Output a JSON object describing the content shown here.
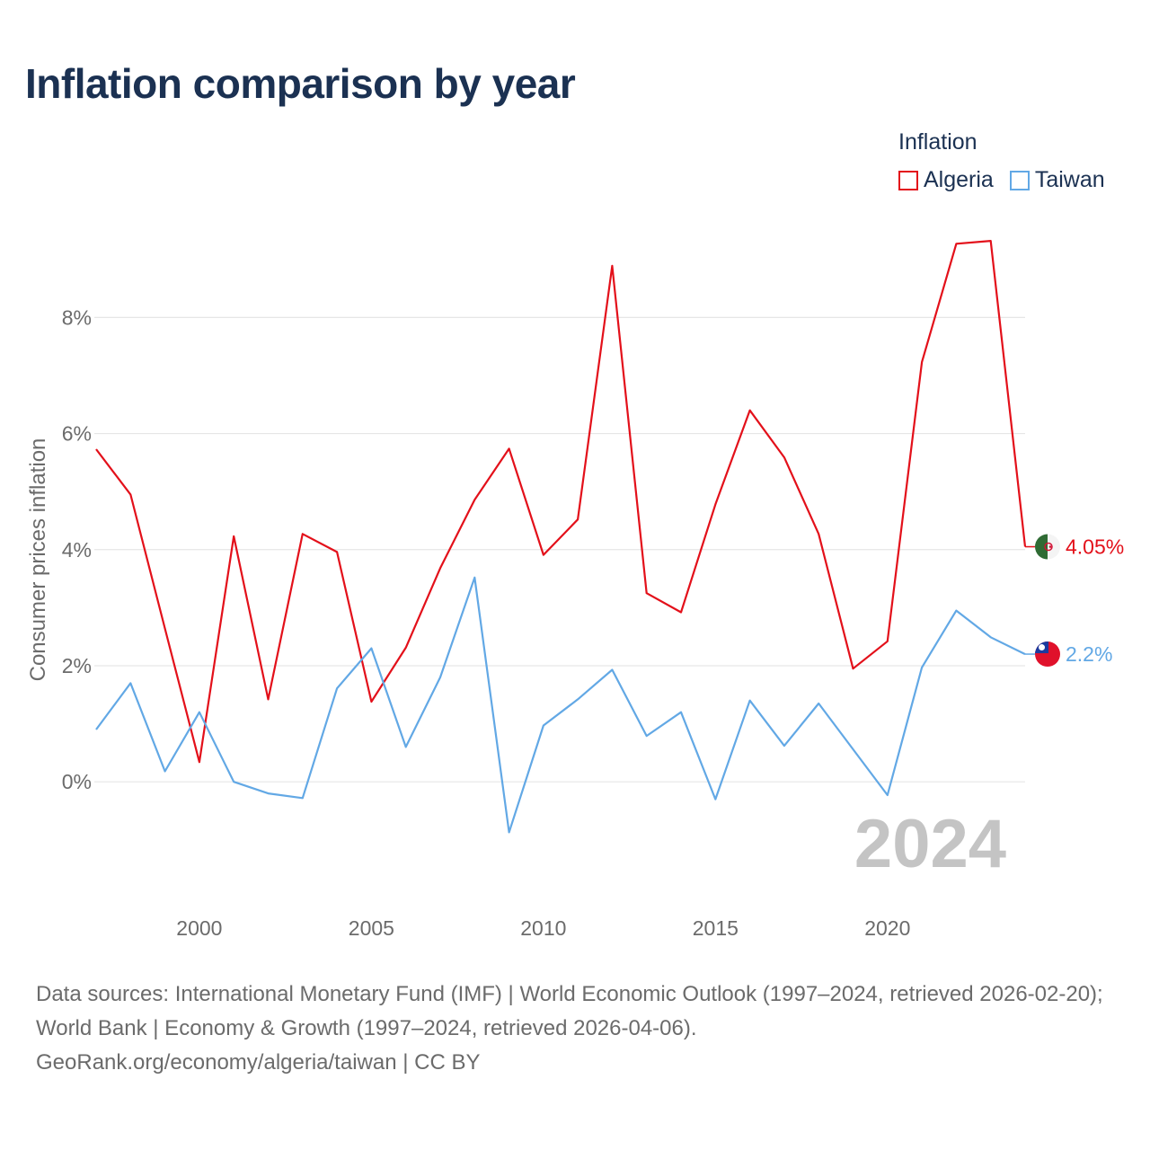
{
  "title": "Inflation comparison by year",
  "legend": {
    "title": "Inflation",
    "items": [
      {
        "label": "Algeria",
        "color": "#e3101a"
      },
      {
        "label": "Taiwan",
        "color": "#62a8e5"
      }
    ]
  },
  "chart_data": {
    "type": "line",
    "title": "Inflation comparison by year",
    "xlabel": "",
    "ylabel": "Consumer prices inflation",
    "xlim": [
      1997,
      2024
    ],
    "ylim": [
      -1.7,
      9.6
    ],
    "x_ticks": [
      2000,
      2005,
      2010,
      2015,
      2020
    ],
    "x_tick_labels": [
      "2000",
      "2005",
      "2010",
      "2015",
      "2020"
    ],
    "y_ticks": [
      0,
      2,
      4,
      6,
      8
    ],
    "y_tick_labels": [
      "0%",
      "2%",
      "4%",
      "6%",
      "8%"
    ],
    "grid": true,
    "year_watermark": "2024",
    "x": [
      1997,
      1998,
      1999,
      2000,
      2001,
      2002,
      2003,
      2004,
      2005,
      2006,
      2007,
      2008,
      2009,
      2010,
      2011,
      2012,
      2013,
      2014,
      2015,
      2016,
      2017,
      2018,
      2019,
      2020,
      2021,
      2022,
      2023,
      2024
    ],
    "series": [
      {
        "name": "Algeria",
        "color": "#e3101a",
        "end_label": "4.05%",
        "values": [
          5.73,
          4.95,
          2.64,
          0.34,
          4.23,
          1.42,
          4.27,
          3.96,
          1.38,
          2.31,
          3.68,
          4.86,
          5.74,
          3.91,
          4.52,
          8.89,
          3.25,
          2.92,
          4.78,
          6.4,
          5.59,
          4.27,
          1.95,
          2.42,
          7.23,
          9.27,
          9.32,
          4.05
        ]
      },
      {
        "name": "Taiwan",
        "color": "#62a8e5",
        "end_label": "2.2%",
        "values": [
          0.9,
          1.7,
          0.18,
          1.2,
          0.0,
          -0.2,
          -0.28,
          1.61,
          2.3,
          0.6,
          1.8,
          3.52,
          -0.87,
          0.97,
          1.42,
          1.93,
          0.79,
          1.2,
          -0.3,
          1.4,
          0.62,
          1.35,
          0.56,
          -0.23,
          1.97,
          2.95,
          2.49,
          2.2
        ]
      }
    ]
  },
  "footer": {
    "sources": "Data sources: International Monetary Fund (IMF) | World Economic Outlook (1997–2024, retrieved 2026-02-20); World Bank | Economy & Growth (1997–2024, retrieved 2026-04-06).",
    "credit": "GeoRank.org/economy/algeria/taiwan | CC BY"
  }
}
